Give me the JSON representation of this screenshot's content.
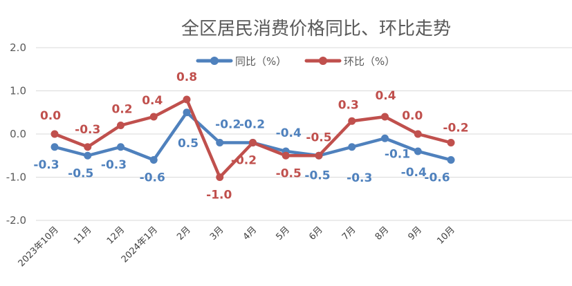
{
  "chart_data": {
    "type": "line",
    "title": "全区居民消费价格同比、环比走势",
    "categories": [
      "2023年10月",
      "11月",
      "12月",
      "2024年1月",
      "2月",
      "3月",
      "4月",
      "5月",
      "6月",
      "7月",
      "8月",
      "9月",
      "10月"
    ],
    "series": [
      {
        "name": "同比（%）",
        "color": "#4F81BD",
        "values": [
          -0.3,
          -0.5,
          -0.3,
          -0.6,
          0.5,
          -0.2,
          -0.2,
          -0.4,
          -0.5,
          -0.3,
          -0.1,
          -0.4,
          -0.6
        ],
        "labels": [
          "-0.3",
          "-0.5",
          "-0.3",
          "-0.6",
          "0.5",
          "-0.2",
          "-0.2",
          "-0.4",
          "-0.5",
          "-0.3",
          "-0.1",
          "-0.4",
          "-0.6"
        ]
      },
      {
        "name": "环比（%）",
        "color": "#C0504D",
        "values": [
          0.0,
          -0.3,
          0.2,
          0.4,
          0.8,
          -1.0,
          -0.2,
          -0.5,
          -0.5,
          0.3,
          0.4,
          0.0,
          -0.2
        ],
        "labels": [
          "0.0",
          "-0.3",
          "0.2",
          "0.4",
          "0.8",
          "-1.0",
          "-0.2",
          "-0.5",
          "-0.5",
          "0.3",
          "0.4",
          "0.0",
          "-0.2"
        ]
      }
    ],
    "ylim": [
      -2.0,
      2.0
    ],
    "yticks": [
      "-2.0",
      "-1.0",
      "0.0",
      "1.0",
      "2.0"
    ],
    "ytick_values": [
      -2,
      -1,
      0,
      1,
      2
    ],
    "grid": true,
    "legend": "top"
  }
}
